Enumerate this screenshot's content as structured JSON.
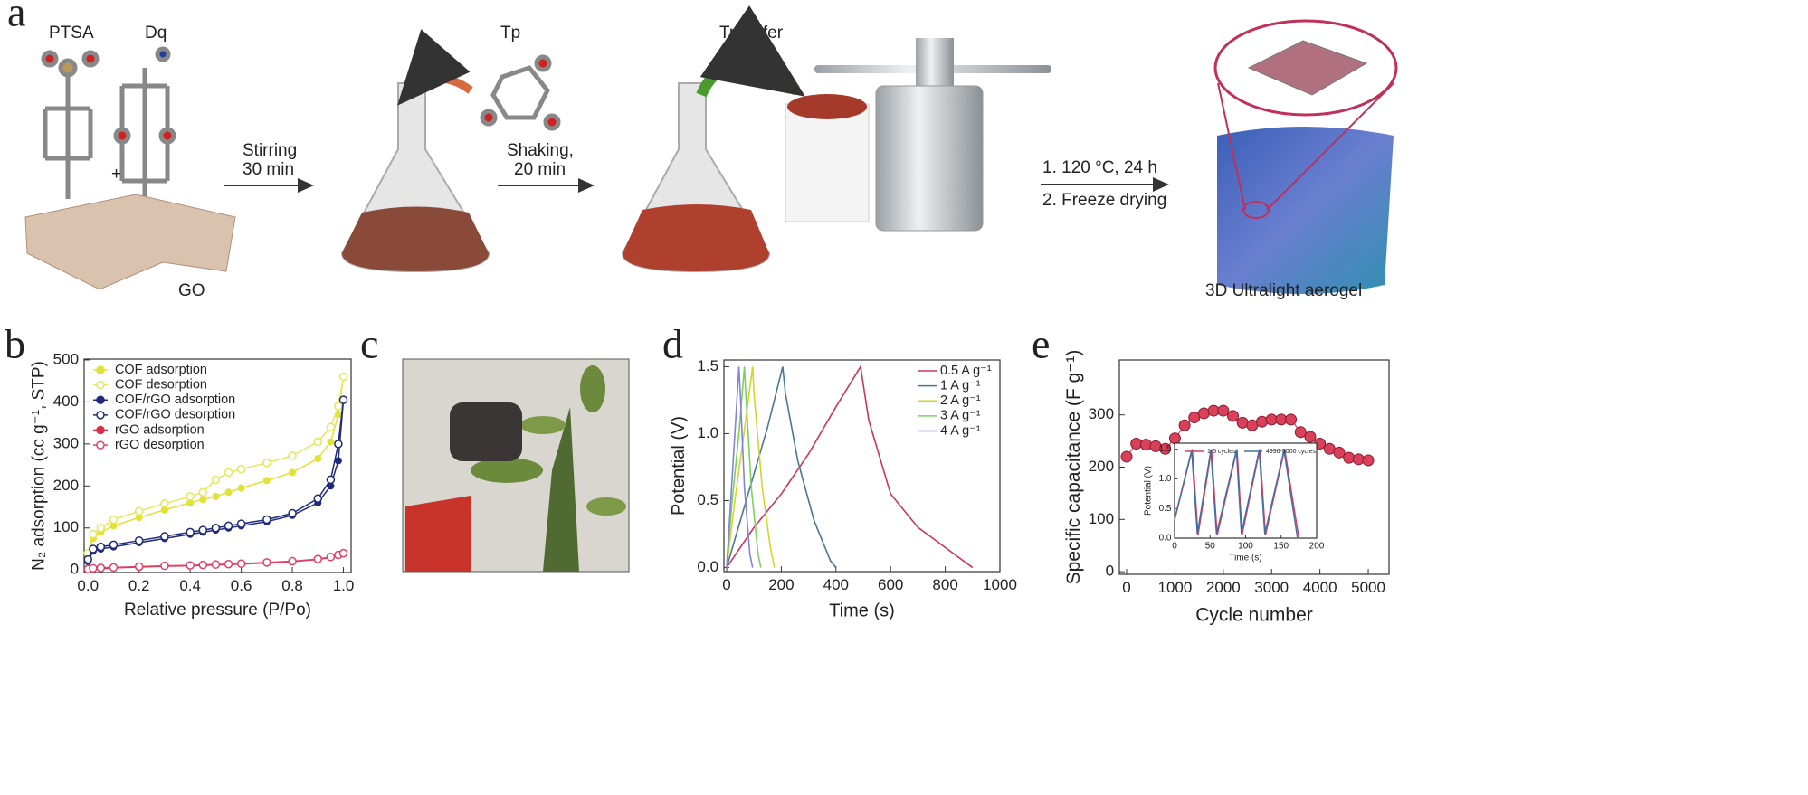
{
  "panel_labels": [
    "a",
    "b",
    "c",
    "d",
    "e"
  ],
  "scheme": {
    "ptsa": "PTSA",
    "dq": "Dq",
    "plus": "+",
    "go": "GO",
    "step1": [
      "Stirring",
      "30 min"
    ],
    "tp": "Tp",
    "step2": [
      "Shaking,",
      "20 min"
    ],
    "transfer": "Transfer",
    "step3": [
      "1. 120 °C, 24 h",
      "2. Freeze drying"
    ],
    "product": "3D Ultralight aerogel"
  },
  "chart_data": [
    {
      "type": "line",
      "markers": true,
      "xlabel": "Relative pressure (P/Po)",
      "ylabel": "N₂ adsorption (cc g⁻¹, STP)",
      "legend": "upper left",
      "x": [
        0,
        0.02,
        0.05,
        0.1,
        0.2,
        0.3,
        0.4,
        0.45,
        0.5,
        0.55,
        0.6,
        0.7,
        0.8,
        0.9,
        0.95,
        0.98,
        1.0
      ],
      "xlim": [
        -0.015,
        1.03
      ],
      "ylim": [
        -6,
        502
      ],
      "xticks": [
        {
          "value": 0,
          "label": "0.0"
        },
        {
          "value": 0.2,
          "label": "0.2"
        },
        {
          "value": 0.4,
          "label": "0.4"
        },
        {
          "value": 0.6,
          "label": "0.6"
        },
        {
          "value": 0.8,
          "label": "0.8"
        },
        {
          "value": 1.0,
          "label": "1.0"
        }
      ],
      "yticks": [
        0,
        100,
        200,
        300,
        400,
        500
      ],
      "series": [
        {
          "name": "COF adsorption",
          "color": "#e2e236",
          "hollow": false,
          "values": [
            30,
            75,
            90,
            105,
            125,
            143,
            160,
            168,
            175,
            185,
            195,
            213,
            232,
            265,
            305,
            370,
            460
          ]
        },
        {
          "name": "COF desorption",
          "color": "#e6e65a",
          "hollow": true,
          "values": [
            40,
            85,
            100,
            120,
            140,
            158,
            175,
            185,
            215,
            232,
            240,
            255,
            272,
            305,
            340,
            390,
            460
          ]
        },
        {
          "name": "COF/rGO adsorption",
          "color": "#1f2a78",
          "hollow": false,
          "values": [
            20,
            45,
            50,
            55,
            65,
            75,
            85,
            90,
            95,
            100,
            105,
            115,
            130,
            160,
            200,
            260,
            405
          ]
        },
        {
          "name": "COF/rGO desorption",
          "color": "#1f2a78",
          "hollow": true,
          "values": [
            25,
            50,
            55,
            60,
            70,
            80,
            90,
            95,
            100,
            105,
            110,
            120,
            135,
            170,
            215,
            300,
            405
          ]
        },
        {
          "name": "rGO adsorption",
          "color": "#d8304a",
          "hollow": false,
          "values": [
            0,
            2,
            3,
            5,
            7,
            9,
            10,
            11,
            12,
            13,
            14,
            17,
            20,
            25,
            30,
            35,
            40
          ]
        },
        {
          "name": "rGO desorption",
          "color": "#e0406a",
          "hollow": true,
          "values": [
            2,
            4,
            5,
            6,
            8,
            10,
            11,
            12,
            13,
            14,
            15,
            18,
            21,
            26,
            31,
            36,
            40
          ]
        }
      ]
    },
    {
      "type": "line",
      "markers": false,
      "xlabel": "Time (s)",
      "ylabel": "Potential (V)",
      "legend": "upper right",
      "xlim": [
        -10,
        1000
      ],
      "ylim": [
        -0.03,
        1.55
      ],
      "xticks": [
        0,
        200,
        400,
        600,
        800,
        1000
      ],
      "yticks": [
        {
          "value": 0,
          "label": "0.0"
        },
        {
          "value": 0.5,
          "label": "0.5"
        },
        {
          "value": 1.0,
          "label": "1.0"
        },
        {
          "value": 1.5,
          "label": "1.5"
        }
      ],
      "series": [
        {
          "name": "0.5 A g⁻¹",
          "color": "#c8385a",
          "x": [
            0,
            100,
            200,
            300,
            400,
            490,
            520,
            600,
            700,
            800,
            900
          ],
          "values": [
            0,
            0.3,
            0.55,
            0.85,
            1.2,
            1.5,
            1.1,
            0.55,
            0.3,
            0.15,
            0
          ]
        },
        {
          "name": "1 A g⁻¹",
          "color": "#4a7890",
          "x": [
            0,
            50,
            100,
            150,
            205,
            215,
            260,
            320,
            380,
            400
          ],
          "values": [
            0,
            0.35,
            0.7,
            1.05,
            1.5,
            1.3,
            0.8,
            0.35,
            0.05,
            0
          ]
        },
        {
          "name": "2 A g⁻¹",
          "color": "#d4d42c",
          "x": [
            0,
            30,
            60,
            95,
            100,
            130,
            160,
            175
          ],
          "values": [
            0,
            0.5,
            0.95,
            1.5,
            1.3,
            0.6,
            0.15,
            0
          ]
        },
        {
          "name": "3 A g⁻¹",
          "color": "#7cd060",
          "x": [
            0,
            20,
            45,
            65,
            70,
            90,
            115,
            125
          ],
          "values": [
            0,
            0.5,
            1.0,
            1.5,
            1.3,
            0.6,
            0.1,
            0
          ]
        },
        {
          "name": "4 A g⁻¹",
          "color": "#8484d4",
          "x": [
            0,
            15,
            30,
            45,
            50,
            65,
            85,
            95
          ],
          "values": [
            0,
            0.5,
            1.0,
            1.5,
            1.3,
            0.6,
            0.1,
            0
          ]
        }
      ]
    },
    {
      "type": "line",
      "markers": true,
      "xlabel": "Cycle number",
      "ylabel": "Specific capacitance (F g⁻¹)",
      "x": [
        0,
        200,
        400,
        600,
        800,
        1000,
        1200,
        1400,
        1600,
        1800,
        2000,
        2200,
        2400,
        2600,
        2800,
        3000,
        3200,
        3400,
        3600,
        3800,
        4000,
        4200,
        4400,
        4600,
        4800,
        5000
      ],
      "xlim": [
        -150,
        5430
      ],
      "ylim": [
        -5,
        405
      ],
      "xticks": [
        0,
        1000,
        2000,
        3000,
        4000,
        5000
      ],
      "yticks": [
        0,
        100,
        200,
        300
      ],
      "series": [
        {
          "color": "#d9405a",
          "hollow": false,
          "values": [
            220,
            245,
            243,
            240,
            235,
            255,
            280,
            295,
            303,
            308,
            308,
            298,
            285,
            280,
            287,
            291,
            291,
            291,
            267,
            258,
            245,
            235,
            228,
            218,
            215,
            213
          ]
        }
      ]
    },
    {
      "type": "line",
      "markers": false,
      "xlabel": "Time (s)",
      "ylabel": "Potential (V)",
      "legend": "upper center",
      "xlim": [
        0,
        200
      ],
      "ylim": [
        0,
        1.6
      ],
      "xticks": [
        0,
        50,
        100,
        150,
        200
      ],
      "yticks": [
        {
          "value": 0,
          "label": "0.0"
        },
        {
          "value": 0.5,
          "label": "0.5"
        },
        {
          "value": 1.0,
          "label": "1.0"
        },
        {
          "value": 1.5,
          "label": "1.5"
        }
      ],
      "series": [
        {
          "name": "1-5 cycles",
          "color": "#d04060",
          "x": [
            0,
            25,
            33,
            52,
            60,
            88,
            95,
            120,
            128,
            155,
            175
          ],
          "values": [
            0.3,
            1.5,
            0.05,
            1.5,
            0.05,
            1.5,
            0.05,
            1.5,
            0.05,
            1.5,
            0
          ]
        },
        {
          "name": "4996-5000 cycles",
          "color": "#4070a0",
          "x": [
            0,
            24,
            32,
            51,
            59,
            87,
            94,
            119,
            127,
            154,
            173
          ],
          "values": [
            0.32,
            1.48,
            0.07,
            1.48,
            0.07,
            1.48,
            0.07,
            1.48,
            0.07,
            1.48,
            0
          ]
        }
      ]
    }
  ]
}
